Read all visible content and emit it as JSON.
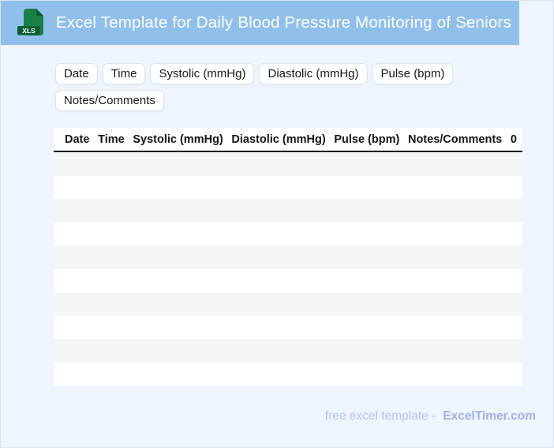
{
  "header": {
    "title": "Excel Template for Daily Blood Pressure Monitoring of Seniors",
    "file_badge": "XLS"
  },
  "chips": {
    "items": [
      "Date",
      "Time",
      "Systolic (mmHg)",
      "Diastolic (mmHg)",
      "Pulse (bpm)",
      "Notes/Comments"
    ]
  },
  "table": {
    "columns": [
      "Date",
      "Time",
      "Systolic (mmHg)",
      "Diastolic (mmHg)",
      "Pulse (bpm)",
      "Notes/Comments",
      "0"
    ],
    "row_count": 10,
    "rows_empty": true
  },
  "footer": {
    "text": "free excel template -",
    "brand": "ExcelTimer.com"
  },
  "colors": {
    "header_bar": "#90c0ea",
    "page_bg": "#eff5fd",
    "canvas_border": "#dbe3ef",
    "row_stripe": "#f5f5f6",
    "icon_green": "#1a8048",
    "icon_green_dark": "#0d5c31",
    "footer_text": "#b7c2ee",
    "footer_brand": "#a2b1e8"
  }
}
